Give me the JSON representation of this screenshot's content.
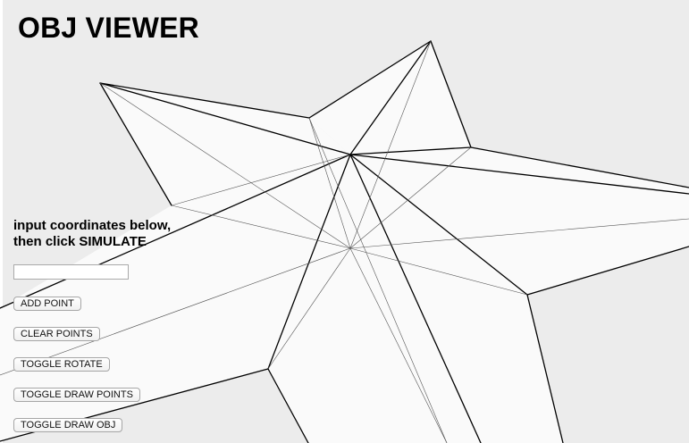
{
  "app": {
    "title": "OBJ VIEWER"
  },
  "controls": {
    "instruction_line1": "input coordinates below,",
    "instruction_line2": "then click SIMULATE",
    "coordinate_input": {
      "value": "",
      "placeholder": ""
    },
    "buttons": {
      "add_point": "ADD POINT",
      "clear_points": "CLEAR POINTS",
      "toggle_rotate": "TOGGLE ROTATE",
      "toggle_draw_points": "TOGGLE DRAW POINTS",
      "toggle_draw_obj": "TOGGLE DRAW OBJ"
    }
  },
  "colors": {
    "background": "#ececec",
    "model_fill": "#fafafa",
    "edge": "#000000"
  }
}
